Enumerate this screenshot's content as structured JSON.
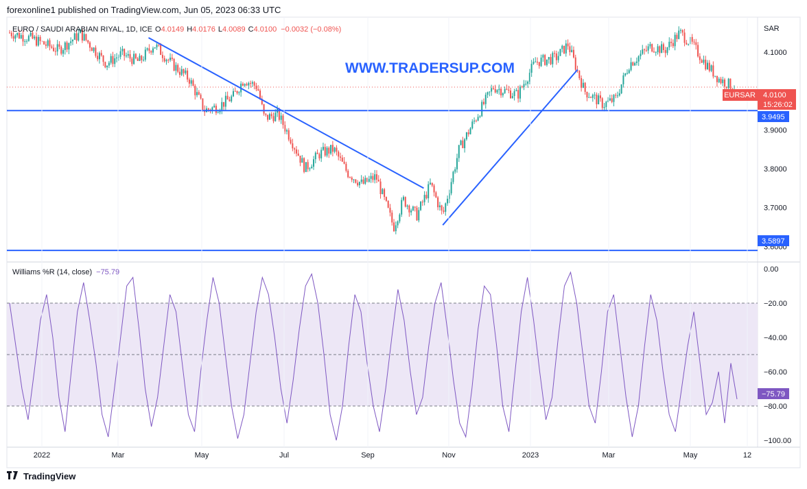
{
  "header": {
    "published": "forexonline1 published on TradingView.com, Jun 05, 2023 06:33 UTC"
  },
  "footer": {
    "brand": "TradingView"
  },
  "chart_data": [
    {
      "type": "candlestick",
      "title": "EURO / SAUDI ARABIAN RIYAL, 1D, ICE",
      "ohlc_label": {
        "O": "4.0149",
        "H": "4.0176",
        "L": "4.0089",
        "C": "4.0100",
        "change": "−0.0032 (−0.08%)"
      },
      "currency": "SAR",
      "watermark": "WWW.TRADERSUP.COM",
      "symbol_tag": "EURSAR",
      "last_price": "4.0100",
      "countdown": "15:26:02",
      "price_ticks": [
        "4.1000",
        "3.9000",
        "3.8000",
        "3.7000"
      ],
      "partially_hidden_tick": "3.6000",
      "ylim": [
        3.56,
        4.19
      ],
      "horizontal_levels": [
        {
          "value": 3.9495,
          "label": "3.9495"
        },
        {
          "value": 3.5897,
          "label": "3.5897"
        }
      ],
      "trendlines": [
        {
          "from": [
            "2022-04-01",
            4.137
          ],
          "to": [
            "2022-10-20",
            3.75
          ]
        },
        {
          "from": [
            "2022-11-03",
            3.655
          ],
          "to": [
            "2023-02-10",
            4.055
          ]
        }
      ],
      "x_ticks": [
        "2022",
        "Mar",
        "May",
        "Jul",
        "Sep",
        "Nov",
        "2023",
        "Mar",
        "May",
        "12"
      ],
      "close_path": [
        [
          "2021-12-20",
          4.15
        ],
        [
          "2022-01-05",
          4.135
        ],
        [
          "2022-01-25",
          4.105
        ],
        [
          "2022-02-10",
          4.148
        ],
        [
          "2022-03-01",
          4.07
        ],
        [
          "2022-03-12",
          4.095
        ],
        [
          "2022-03-25",
          4.075
        ],
        [
          "2022-04-05",
          4.12
        ],
        [
          "2022-04-18",
          4.07
        ],
        [
          "2022-05-01",
          4.03
        ],
        [
          "2022-05-12",
          3.95
        ],
        [
          "2022-05-22",
          3.96
        ],
        [
          "2022-06-02",
          3.985
        ],
        [
          "2022-06-10",
          4.03
        ],
        [
          "2022-06-20",
          4.01
        ],
        [
          "2022-06-25",
          3.93
        ],
        [
          "2022-07-05",
          3.94
        ],
        [
          "2022-07-14",
          3.88
        ],
        [
          "2022-07-25",
          3.8
        ],
        [
          "2022-08-05",
          3.84
        ],
        [
          "2022-08-15",
          3.85
        ],
        [
          "2022-08-25",
          3.79
        ],
        [
          "2022-09-05",
          3.76
        ],
        [
          "2022-09-15",
          3.78
        ],
        [
          "2022-09-28",
          3.65
        ],
        [
          "2022-10-05",
          3.72
        ],
        [
          "2022-10-15",
          3.68
        ],
        [
          "2022-10-25",
          3.76
        ],
        [
          "2022-11-03",
          3.68
        ],
        [
          "2022-11-15",
          3.85
        ],
        [
          "2022-11-28",
          3.935
        ],
        [
          "2022-12-10",
          4.01
        ],
        [
          "2022-12-28",
          3.99
        ],
        [
          "2023-01-10",
          4.075
        ],
        [
          "2023-01-25",
          4.085
        ],
        [
          "2023-02-03",
          4.12
        ],
        [
          "2023-02-15",
          4.0
        ],
        [
          "2023-03-01",
          3.965
        ],
        [
          "2023-03-10",
          3.98
        ],
        [
          "2023-03-20",
          4.07
        ],
        [
          "2023-04-05",
          4.115
        ],
        [
          "2023-04-15",
          4.105
        ],
        [
          "2023-04-26",
          4.15
        ],
        [
          "2023-05-05",
          4.12
        ],
        [
          "2023-05-15",
          4.07
        ],
        [
          "2023-05-25",
          4.03
        ],
        [
          "2023-06-05",
          4.01
        ]
      ]
    },
    {
      "type": "line",
      "title": "Williams %R (14, close)",
      "current_value": "−75.79",
      "ylim": [
        -104,
        4
      ],
      "y_ticks": [
        "0.00",
        "−20.00",
        "−40.00",
        "−60.00",
        "−80.00",
        "−100.00"
      ],
      "bands": {
        "upper": -20,
        "middle": -50,
        "lower": -80
      },
      "series": [
        {
          "name": "Williams %R",
          "color": "#7e57c2",
          "values": [
            -20,
            -45,
            -70,
            -88,
            -60,
            -30,
            -15,
            -40,
            -75,
            -95,
            -60,
            -25,
            -8,
            -30,
            -55,
            -85,
            -98,
            -70,
            -40,
            -10,
            -5,
            -35,
            -70,
            -92,
            -75,
            -45,
            -15,
            -25,
            -55,
            -85,
            -95,
            -60,
            -30,
            -5,
            -20,
            -50,
            -80,
            -99,
            -85,
            -55,
            -25,
            -5,
            -15,
            -40,
            -70,
            -90,
            -65,
            -35,
            -10,
            -3,
            -20,
            -50,
            -85,
            -100,
            -80,
            -45,
            -15,
            -25,
            -55,
            -80,
            -95,
            -70,
            -40,
            -12,
            -30,
            -60,
            -85,
            -75,
            -45,
            -20,
            -8,
            -35,
            -65,
            -90,
            -98,
            -70,
            -35,
            -10,
            -15,
            -45,
            -80,
            -95,
            -60,
            -25,
            -5,
            -30,
            -60,
            -88,
            -75,
            -40,
            -10,
            -2,
            -20,
            -50,
            -80,
            -90,
            -60,
            -25,
            -15,
            -45,
            -75,
            -98,
            -80,
            -45,
            -15,
            -30,
            -60,
            -85,
            -95,
            -70,
            -45,
            -25,
            -55,
            -85,
            -78,
            -60,
            -90,
            -55,
            -76
          ]
        }
      ]
    }
  ],
  "colors": {
    "up": "#26a69a",
    "down": "#ef5350",
    "trend": "#2962ff",
    "wr_line": "#7e57c2",
    "wr_band": "#ede7f6"
  }
}
